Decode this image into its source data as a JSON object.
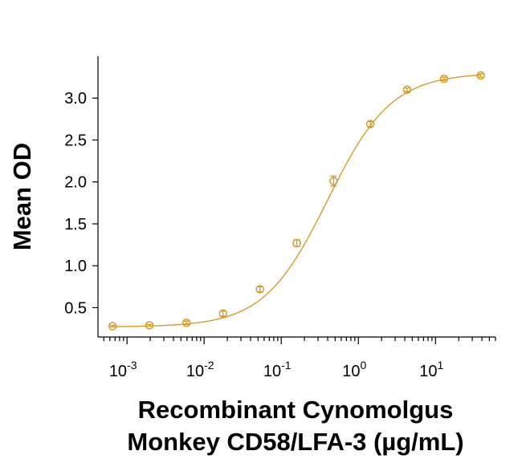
{
  "chart_data": {
    "type": "scatter",
    "title": "",
    "xlabel_lines": [
      "Recombinant Cynomolgus",
      "Monkey CD58/LFA-3 (µg/mL)"
    ],
    "ylabel": "Mean OD",
    "x_scale": "log",
    "xlim": [
      0.00042,
      60
    ],
    "ylim": [
      0.15,
      3.5
    ],
    "x_ticks": [
      {
        "value": 0.001,
        "base": "10",
        "exp": "-3"
      },
      {
        "value": 0.01,
        "base": "10",
        "exp": "-2"
      },
      {
        "value": 0.1,
        "base": "10",
        "exp": "-1"
      },
      {
        "value": 1,
        "base": "10",
        "exp": "0"
      },
      {
        "value": 10,
        "base": "10",
        "exp": "1"
      }
    ],
    "y_ticks": [
      {
        "value": 0.5,
        "label": "0.5"
      },
      {
        "value": 1.0,
        "label": "1.0"
      },
      {
        "value": 1.5,
        "label": "1.5"
      },
      {
        "value": 2.0,
        "label": "2.0"
      },
      {
        "value": 2.5,
        "label": "2.5"
      },
      {
        "value": 3.0,
        "label": "3.0"
      }
    ],
    "grid": false,
    "legend": "none",
    "series": [
      {
        "color": "#d99a2b",
        "x": [
          0.00065,
          0.00195,
          0.0059,
          0.0176,
          0.0529,
          0.159,
          0.476,
          1.43,
          4.29,
          12.9,
          38.6
        ],
        "y": [
          0.28,
          0.29,
          0.32,
          0.43,
          0.72,
          1.27,
          2.01,
          2.69,
          3.1,
          3.23,
          3.27
        ],
        "error": [
          0.01,
          0.01,
          0.02,
          0.03,
          0.03,
          0.04,
          0.06,
          0.03,
          0.02,
          0.02,
          0.02
        ]
      }
    ],
    "fit": {
      "model": "4PL",
      "bottom": 0.27,
      "top": 3.3,
      "ec50": 0.4,
      "hill": 1.05
    }
  }
}
